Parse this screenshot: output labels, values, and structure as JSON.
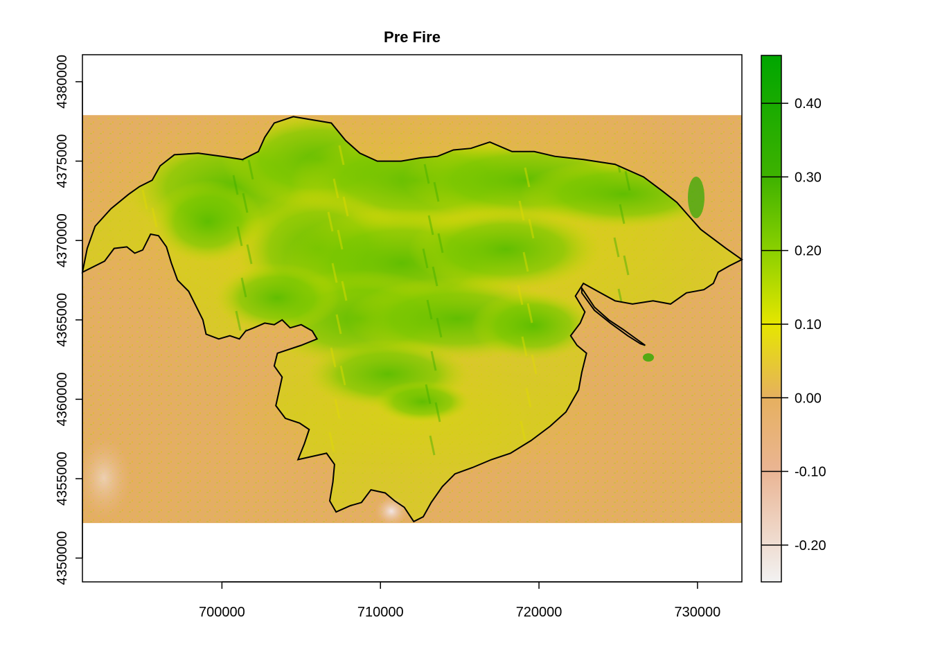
{
  "chart_data": {
    "type": "heatmap",
    "title": "Pre Fire",
    "xlabel": "",
    "ylabel": "",
    "xlim": [
      691200,
      732800
    ],
    "ylim": [
      4348500,
      4381700
    ],
    "raster_extent": {
      "x": [
        691200,
        732800
      ],
      "y": [
        4352200,
        4377900
      ]
    },
    "x_ticks": [
      700000,
      710000,
      720000,
      730000
    ],
    "x_tick_labels": [
      "700000",
      "710000",
      "720000",
      "730000"
    ],
    "y_ticks": [
      4350000,
      4355000,
      4360000,
      4365000,
      4370000,
      4375000,
      4380000
    ],
    "y_tick_labels": [
      "4350000",
      "4355000",
      "4360000",
      "4365000",
      "4370000",
      "4375000",
      "4380000"
    ],
    "legend": {
      "position": "right",
      "range": [
        -0.25,
        0.465
      ],
      "ticks": [
        0.4,
        0.3,
        0.2,
        0.1,
        0.0,
        -0.1,
        -0.2
      ],
      "tick_labels": [
        "0.40",
        "0.30",
        "0.20",
        "0.10",
        "0.00",
        "-0.10",
        "-0.20"
      ],
      "color_stops": [
        {
          "value": -0.25,
          "color": "#f2f2f2"
        },
        {
          "value": -0.1,
          "color": "#eab594"
        },
        {
          "value": 0.0,
          "color": "#e6b05f"
        },
        {
          "value": 0.1,
          "color": "#e6e600"
        },
        {
          "value": 0.2,
          "color": "#8bd000"
        },
        {
          "value": 0.3,
          "color": "#3eb200"
        },
        {
          "value": 0.465,
          "color": "#00a600"
        }
      ]
    },
    "background_color": "#e4ae64",
    "fire_boundary": [
      [
        691200,
        4368000
      ],
      [
        692600,
        4368700
      ],
      [
        693200,
        4369500
      ],
      [
        694000,
        4369600
      ],
      [
        694500,
        4369200
      ],
      [
        695000,
        4369400
      ],
      [
        695500,
        4370400
      ],
      [
        696000,
        4370300
      ],
      [
        696500,
        4369600
      ],
      [
        696800,
        4368600
      ],
      [
        697200,
        4367500
      ],
      [
        697900,
        4366800
      ],
      [
        698300,
        4366000
      ],
      [
        698800,
        4365000
      ],
      [
        699000,
        4364100
      ],
      [
        699800,
        4363800
      ],
      [
        700500,
        4364000
      ],
      [
        701100,
        4363800
      ],
      [
        701500,
        4364300
      ],
      [
        702000,
        4364500
      ],
      [
        702700,
        4364800
      ],
      [
        703300,
        4364700
      ],
      [
        703800,
        4365000
      ],
      [
        704300,
        4364500
      ],
      [
        705000,
        4364700
      ],
      [
        705700,
        4364300
      ],
      [
        706000,
        4363800
      ],
      [
        705000,
        4363400
      ],
      [
        703500,
        4362900
      ],
      [
        703300,
        4362100
      ],
      [
        703800,
        4361400
      ],
      [
        703600,
        4360500
      ],
      [
        703400,
        4359600
      ],
      [
        704000,
        4358800
      ],
      [
        704900,
        4358500
      ],
      [
        705500,
        4358100
      ],
      [
        705200,
        4357200
      ],
      [
        704800,
        4356200
      ],
      [
        705700,
        4356400
      ],
      [
        706600,
        4356600
      ],
      [
        707100,
        4355900
      ],
      [
        707000,
        4354800
      ],
      [
        706800,
        4353600
      ],
      [
        707200,
        4352900
      ],
      [
        708100,
        4353300
      ],
      [
        708800,
        4353500
      ],
      [
        709400,
        4354300
      ],
      [
        710300,
        4354100
      ],
      [
        710900,
        4353600
      ],
      [
        711500,
        4353200
      ],
      [
        712100,
        4352300
      ],
      [
        712700,
        4352600
      ],
      [
        713200,
        4353500
      ],
      [
        713900,
        4354500
      ],
      [
        714700,
        4355300
      ],
      [
        715800,
        4355700
      ],
      [
        717000,
        4356200
      ],
      [
        718200,
        4356600
      ],
      [
        719500,
        4357400
      ],
      [
        720700,
        4358300
      ],
      [
        721700,
        4359200
      ],
      [
        722500,
        4360600
      ],
      [
        722700,
        4361700
      ],
      [
        723000,
        4362900
      ],
      [
        722400,
        4363400
      ],
      [
        722000,
        4364000
      ],
      [
        722600,
        4364800
      ],
      [
        722900,
        4365500
      ],
      [
        722300,
        4366500
      ],
      [
        722800,
        4367300
      ],
      [
        723700,
        4366800
      ],
      [
        724800,
        4366200
      ],
      [
        725900,
        4366000
      ],
      [
        727200,
        4366200
      ],
      [
        728300,
        4366000
      ],
      [
        729300,
        4366700
      ],
      [
        730400,
        4366900
      ],
      [
        731000,
        4367300
      ],
      [
        731300,
        4368000
      ],
      [
        732000,
        4368400
      ],
      [
        732800,
        4368800
      ],
      [
        731800,
        4369500
      ],
      [
        730200,
        4370700
      ],
      [
        729400,
        4371600
      ],
      [
        728700,
        4372400
      ],
      [
        727800,
        4373100
      ],
      [
        726600,
        4374000
      ],
      [
        724800,
        4374800
      ],
      [
        722800,
        4375100
      ],
      [
        721000,
        4375300
      ],
      [
        719700,
        4375600
      ],
      [
        718300,
        4375600
      ],
      [
        716900,
        4376200
      ],
      [
        715700,
        4375800
      ],
      [
        714600,
        4375700
      ],
      [
        713600,
        4375300
      ],
      [
        712500,
        4375200
      ],
      [
        711300,
        4375000
      ],
      [
        709800,
        4375000
      ],
      [
        708700,
        4375500
      ],
      [
        707800,
        4376300
      ],
      [
        706900,
        4377400
      ],
      [
        705700,
        4377600
      ],
      [
        704500,
        4377800
      ],
      [
        703300,
        4377400
      ],
      [
        702700,
        4376500
      ],
      [
        702300,
        4375600
      ],
      [
        701300,
        4375100
      ],
      [
        700000,
        4375300
      ],
      [
        698500,
        4375500
      ],
      [
        697000,
        4375400
      ],
      [
        696100,
        4374700
      ],
      [
        695600,
        4373800
      ],
      [
        694800,
        4373400
      ],
      [
        694100,
        4372900
      ],
      [
        693000,
        4372000
      ],
      [
        692000,
        4370900
      ],
      [
        691500,
        4369500
      ],
      [
        691200,
        4368000
      ]
    ],
    "secondary_outline": [
      [
        722700,
        4367000
      ],
      [
        723500,
        4365800
      ],
      [
        724400,
        4365000
      ],
      [
        725300,
        4364400
      ],
      [
        726000,
        4363900
      ],
      [
        726700,
        4363400
      ],
      [
        726400,
        4363500
      ],
      [
        725600,
        4364000
      ],
      [
        724500,
        4364800
      ],
      [
        723500,
        4365600
      ],
      [
        722700,
        4366700
      ]
    ]
  }
}
